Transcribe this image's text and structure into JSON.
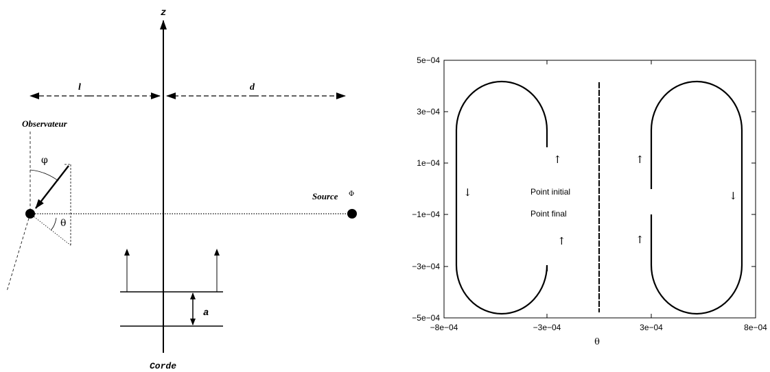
{
  "diagram": {
    "z_label": "z",
    "l_label": "l",
    "d_label": "d",
    "observer_label": "Observateur",
    "source_label": "Source",
    "source_symbol": "Φ",
    "phi_label": "φ",
    "theta_label": "θ",
    "a_label": "a",
    "string_label": "Corde"
  },
  "plot": {
    "xlabel": "θ",
    "xticks": [
      "−8e−04",
      "−3e−04",
      "3e−04",
      "8e−04"
    ],
    "yticks": [
      "5e−04",
      "3e−04",
      "1e−04",
      "−1e−04",
      "−3e−04",
      "−5e−04"
    ],
    "annot_initial": "Point initial",
    "annot_final": "Point final",
    "arrow_up": "↑",
    "arrow_down": "↓"
  }
}
